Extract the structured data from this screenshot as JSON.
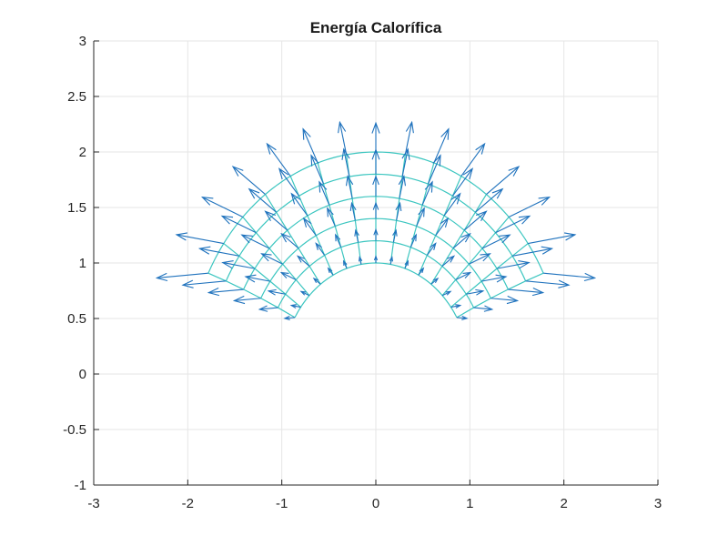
{
  "chart_data": {
    "type": "quiver",
    "title": "Energía Calorífica",
    "xlabel": "",
    "ylabel": "",
    "xlim": [
      -3,
      3
    ],
    "ylim": [
      -1,
      3
    ],
    "xticks": [
      "-3",
      "-2",
      "-1",
      "0",
      "1",
      "2",
      "3"
    ],
    "yticks": [
      "-1",
      "-0.5",
      "0",
      "0.5",
      "1",
      "1.5",
      "2",
      "2.5",
      "3"
    ],
    "grid": true,
    "legend": null,
    "mesh": {
      "description": "Polar (annular) mesh surface viewed from above",
      "radii": [
        1.0,
        1.2,
        1.4,
        1.6,
        1.8,
        2.0
      ],
      "theta_center_deg": 90,
      "theta_step_deg": 9,
      "spokes_each_side": 7,
      "color": "#3cc6c0"
    },
    "quiver": {
      "description": "Heat-flux arrows pointing radially outward, longer at larger radius and toward the sides",
      "color": "#1f72bd",
      "sample_vectors": [
        {
          "x": 0,
          "y": 1.0,
          "u": 0,
          "v": 0.05
        },
        {
          "x": 0,
          "y": 2.0,
          "u": 0,
          "v": 0.22
        },
        {
          "x": 1.73,
          "y": 1.0,
          "u": 0.45,
          "v": 0.15
        },
        {
          "x": -1.73,
          "y": 1.0,
          "u": -0.45,
          "v": 0.15
        }
      ]
    }
  },
  "figure": {
    "title": "Energía Calorífica",
    "mesh_color": "#3cc6c0",
    "arrow_color": "#1f72bd",
    "grid_color": "#e6e6e6",
    "axis_color": "#262626"
  }
}
